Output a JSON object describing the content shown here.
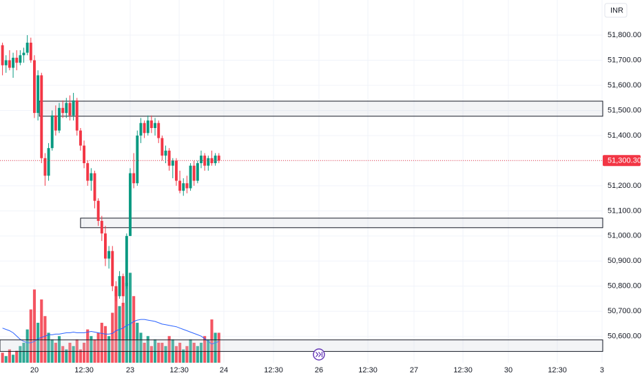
{
  "chart_data": {
    "type": "candlestick",
    "currency": "INR",
    "up_color": "#089981",
    "down_color": "#f23645",
    "ma_color": "#2962ff",
    "grid": true,
    "ylim": [
      50495,
      51940
    ],
    "yticks": [
      {
        "value": 50600,
        "label": "50,600.00"
      },
      {
        "value": 50700,
        "label": "50,700.00"
      },
      {
        "value": 50800,
        "label": "50,800.00"
      },
      {
        "value": 50900,
        "label": "50,900.00"
      },
      {
        "value": 51000,
        "label": "51,000.00"
      },
      {
        "value": 51100,
        "label": "51,100.00"
      },
      {
        "value": 51200,
        "label": "51,200.00"
      },
      {
        "value": 51300,
        "label": "51,300.00"
      },
      {
        "value": 51400,
        "label": "51,400.00"
      },
      {
        "value": 51500,
        "label": "51,500.00"
      },
      {
        "value": 51600,
        "label": "51,600.00"
      },
      {
        "value": 51700,
        "label": "51,700.00"
      },
      {
        "value": 51800,
        "label": "51,800.00"
      }
    ],
    "xlim": [
      -0.7,
      169.2
    ],
    "xticks": [
      {
        "value": 9,
        "label": "20"
      },
      {
        "value": 23,
        "label": "12:30"
      },
      {
        "value": 36,
        "label": "23"
      },
      {
        "value": 49.8,
        "label": "12:30"
      },
      {
        "value": 62.4,
        "label": "24"
      },
      {
        "value": 76.4,
        "label": "12:30"
      },
      {
        "value": 89.2,
        "label": "26"
      },
      {
        "value": 103,
        "label": "12:30"
      },
      {
        "value": 116,
        "label": "27"
      },
      {
        "value": 129.8,
        "label": "12:30"
      },
      {
        "value": 142.6,
        "label": "30"
      },
      {
        "value": 156.4,
        "label": "12:30"
      },
      {
        "value": 169,
        "label": "3"
      }
    ],
    "candles": [
      [
        51760,
        51770,
        51640,
        51680
      ],
      [
        51680,
        51720,
        51650,
        51700
      ],
      [
        51700,
        51740,
        51660,
        51670
      ],
      [
        51670,
        51730,
        51630,
        51710
      ],
      [
        51710,
        51740,
        51660,
        51690
      ],
      [
        51690,
        51740,
        51680,
        51720
      ],
      [
        51720,
        51750,
        51690,
        51730
      ],
      [
        51730,
        51800,
        51720,
        51770
      ],
      [
        51770,
        51790,
        51690,
        51700
      ],
      [
        51700,
        51720,
        51470,
        51490
      ],
      [
        51490,
        51660,
        51460,
        51640
      ],
      [
        51640,
        51650,
        51290,
        51310
      ],
      [
        51310,
        51330,
        51200,
        51240
      ],
      [
        51240,
        51370,
        51220,
        51350
      ],
      [
        51350,
        51500,
        51340,
        51480
      ],
      [
        51480,
        51520,
        51400,
        51420
      ],
      [
        51420,
        51530,
        51410,
        51510
      ],
      [
        51510,
        51540,
        51470,
        51490
      ],
      [
        51490,
        51550,
        51470,
        51530
      ],
      [
        51530,
        51560,
        51460,
        51480
      ],
      [
        51480,
        51570,
        51460,
        51540
      ],
      [
        51540,
        51550,
        51400,
        51420
      ],
      [
        51420,
        51430,
        51340,
        51360
      ],
      [
        51360,
        51380,
        51270,
        51290
      ],
      [
        51290,
        51300,
        51200,
        51220
      ],
      [
        51220,
        51270,
        51180,
        51250
      ],
      [
        51250,
        51260,
        51110,
        51140
      ],
      [
        51140,
        51150,
        51040,
        51060
      ],
      [
        51060,
        51080,
        50980,
        51010
      ],
      [
        51010,
        51040,
        50880,
        50910
      ],
      [
        50910,
        50960,
        50870,
        50940
      ],
      [
        50940,
        50960,
        50780,
        50800
      ],
      [
        50800,
        50820,
        50740,
        50760
      ],
      [
        50760,
        50860,
        50750,
        50840
      ],
      [
        50840,
        50850,
        50720,
        50760
      ],
      [
        50800,
        51010,
        50790,
        51000
      ],
      [
        51000,
        51270,
        51000,
        51250
      ],
      [
        51250,
        51330,
        51190,
        51210
      ],
      [
        51210,
        51420,
        51200,
        51400
      ],
      [
        51400,
        51470,
        51370,
        51450
      ],
      [
        51450,
        51460,
        51390,
        51410
      ],
      [
        51410,
        51480,
        51400,
        51460
      ],
      [
        51460,
        51480,
        51410,
        51430
      ],
      [
        51430,
        51470,
        51400,
        51450
      ],
      [
        51450,
        51460,
        51370,
        51390
      ],
      [
        51390,
        51400,
        51300,
        51320
      ],
      [
        51320,
        51360,
        51290,
        51340
      ],
      [
        51340,
        51350,
        51260,
        51280
      ],
      [
        51280,
        51310,
        51230,
        51300
      ],
      [
        51300,
        51310,
        51200,
        51220
      ],
      [
        51220,
        51260,
        51170,
        51180
      ],
      [
        51180,
        51230,
        51160,
        51210
      ],
      [
        51210,
        51240,
        51170,
        51190
      ],
      [
        51190,
        51290,
        51180,
        51280
      ],
      [
        51280,
        51300,
        51200,
        51220
      ],
      [
        51220,
        51300,
        51210,
        51290
      ],
      [
        51290,
        51340,
        51270,
        51320
      ],
      [
        51320,
        51330,
        51260,
        51280
      ],
      [
        51280,
        51320,
        51260,
        51310
      ],
      [
        51310,
        51340,
        51280,
        51290
      ],
      [
        51290,
        51330,
        51280,
        51320
      ],
      [
        51320,
        51330,
        51290,
        51300.3
      ]
    ],
    "volume_lim": [
      0,
      155
    ],
    "volume": [
      15,
      10,
      20,
      12,
      18,
      25,
      30,
      50,
      80,
      110,
      60,
      95,
      70,
      45,
      35,
      30,
      40,
      25,
      20,
      30,
      25,
      35,
      20,
      30,
      50,
      40,
      35,
      45,
      60,
      55,
      40,
      75,
      110,
      85,
      90,
      120,
      135,
      100,
      60,
      45,
      30,
      40,
      25,
      35,
      30,
      30,
      25,
      40,
      35,
      25,
      30,
      20,
      25,
      35,
      30,
      25,
      30,
      40,
      35,
      65,
      45,
      45
    ],
    "volume_ma": [
      52,
      50,
      48,
      45,
      40,
      35,
      32,
      30,
      30,
      32,
      36,
      38,
      40,
      42,
      42,
      43,
      43,
      44,
      45,
      45,
      46,
      45,
      45,
      45,
      46,
      47,
      46,
      45,
      44,
      43,
      43,
      44,
      48,
      50,
      52,
      56,
      58,
      62,
      64,
      65,
      65,
      64,
      63,
      62,
      60,
      58,
      57,
      56,
      55,
      54,
      52,
      50,
      48,
      46,
      44,
      42,
      40,
      36,
      32,
      28,
      30,
      32
    ],
    "zones": [
      {
        "from": 10.4,
        "top": 51537,
        "bottom": 51477
      },
      {
        "from": 22,
        "top": 51071,
        "bottom": 51033
      },
      {
        "from": -0.7,
        "top": 50586,
        "bottom": 50540
      }
    ],
    "last_price": {
      "value": 51300.3,
      "label": "51,300.30"
    }
  }
}
